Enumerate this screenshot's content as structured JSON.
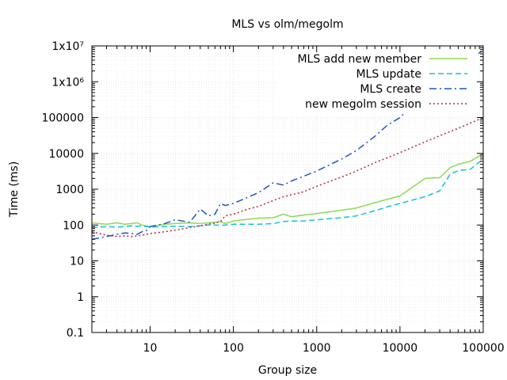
{
  "chart_data": {
    "type": "line",
    "title": "MLS vs olm/megolm",
    "xlabel": "Group size",
    "ylabel": "Time (ms)",
    "xscale": "log",
    "yscale": "log",
    "xlim": [
      2,
      100000
    ],
    "ylim": [
      0.1,
      10000000
    ],
    "grid": true,
    "legend_position": "top-right",
    "x_ticks": [
      {
        "value": 10,
        "label": "10"
      },
      {
        "value": 100,
        "label": "100"
      },
      {
        "value": 1000,
        "label": "1000"
      },
      {
        "value": 10000,
        "label": "10000"
      },
      {
        "value": 100000,
        "label": "100000"
      }
    ],
    "y_ticks": [
      {
        "value": 0.1,
        "label": "0.1"
      },
      {
        "value": 1,
        "label": "1"
      },
      {
        "value": 10,
        "label": "10"
      },
      {
        "value": 100,
        "label": "100"
      },
      {
        "value": 1000,
        "label": "1000"
      },
      {
        "value": 10000,
        "label": "10000"
      },
      {
        "value": 100000,
        "label": "100000"
      },
      {
        "value": 1000000,
        "label": "1x10⁶"
      },
      {
        "value": 10000000,
        "label": "1x10⁷"
      }
    ],
    "series": [
      {
        "name": "MLS add new member",
        "color": "#8fda52",
        "dash": "solid",
        "x": [
          2,
          3,
          4,
          5,
          6,
          7,
          8,
          9,
          10,
          15,
          20,
          30,
          40,
          50,
          60,
          70,
          80,
          100,
          150,
          200,
          300,
          400,
          500,
          700,
          1000,
          2000,
          3000,
          5000,
          7000,
          10000,
          20000,
          30000,
          40000,
          50000,
          70000,
          100000
        ],
        "y": [
          115,
          105,
          115,
          105,
          110,
          115,
          100,
          95,
          90,
          105,
          110,
          115,
          110,
          115,
          120,
          125,
          110,
          130,
          145,
          155,
          160,
          200,
          170,
          190,
          210,
          260,
          300,
          420,
          520,
          650,
          2000,
          2100,
          4000,
          5000,
          6000,
          10000
        ]
      },
      {
        "name": "MLS update",
        "color": "#12c3d9",
        "dash": "dashed",
        "x": [
          2,
          3,
          4,
          5,
          6,
          7,
          8,
          9,
          10,
          15,
          20,
          30,
          40,
          50,
          60,
          70,
          80,
          100,
          150,
          200,
          300,
          400,
          500,
          700,
          1000,
          2000,
          3000,
          5000,
          7000,
          10000,
          20000,
          30000,
          40000,
          50000,
          70000,
          100000
        ],
        "y": [
          85,
          90,
          88,
          90,
          95,
          92,
          95,
          90,
          88,
          90,
          92,
          90,
          95,
          100,
          100,
          98,
          100,
          105,
          105,
          105,
          110,
          125,
          130,
          130,
          140,
          160,
          180,
          250,
          320,
          400,
          620,
          900,
          2600,
          3300,
          3600,
          7000
        ]
      },
      {
        "name": "MLS create",
        "color": "#1c58b8",
        "dash": "dashdot",
        "x": [
          2,
          3,
          4,
          5,
          6,
          7,
          8,
          9,
          10,
          15,
          20,
          30,
          40,
          50,
          60,
          70,
          80,
          100,
          150,
          200,
          300,
          400,
          500,
          700,
          1000,
          2000,
          3000,
          5000,
          7000,
          10000,
          20000,
          30000,
          50000,
          70000,
          100000
        ],
        "y": [
          40,
          48,
          55,
          60,
          58,
          55,
          65,
          70,
          90,
          110,
          140,
          120,
          280,
          180,
          200,
          400,
          350,
          400,
          600,
          800,
          1500,
          1300,
          1700,
          2300,
          3200,
          7000,
          12000,
          30000,
          60000,
          100000,
          500000,
          1100000,
          2500000,
          4500000,
          7500000
        ]
      },
      {
        "name": "new megolm session",
        "color": "#b5234f",
        "dash": "dotted",
        "x": [
          2,
          3,
          4,
          5,
          6,
          7,
          8,
          9,
          10,
          15,
          20,
          30,
          40,
          50,
          60,
          70,
          80,
          100,
          150,
          200,
          300,
          400,
          500,
          700,
          1000,
          2000,
          3000,
          5000,
          7000,
          10000,
          20000,
          30000,
          50000,
          70000,
          100000
        ],
        "y": [
          65,
          52,
          48,
          50,
          48,
          50,
          52,
          55,
          58,
          65,
          72,
          85,
          95,
          105,
          115,
          125,
          180,
          200,
          280,
          330,
          480,
          620,
          700,
          850,
          1200,
          2200,
          3200,
          5500,
          7500,
          10500,
          21000,
          31000,
          50000,
          70000,
          100000
        ]
      }
    ]
  }
}
